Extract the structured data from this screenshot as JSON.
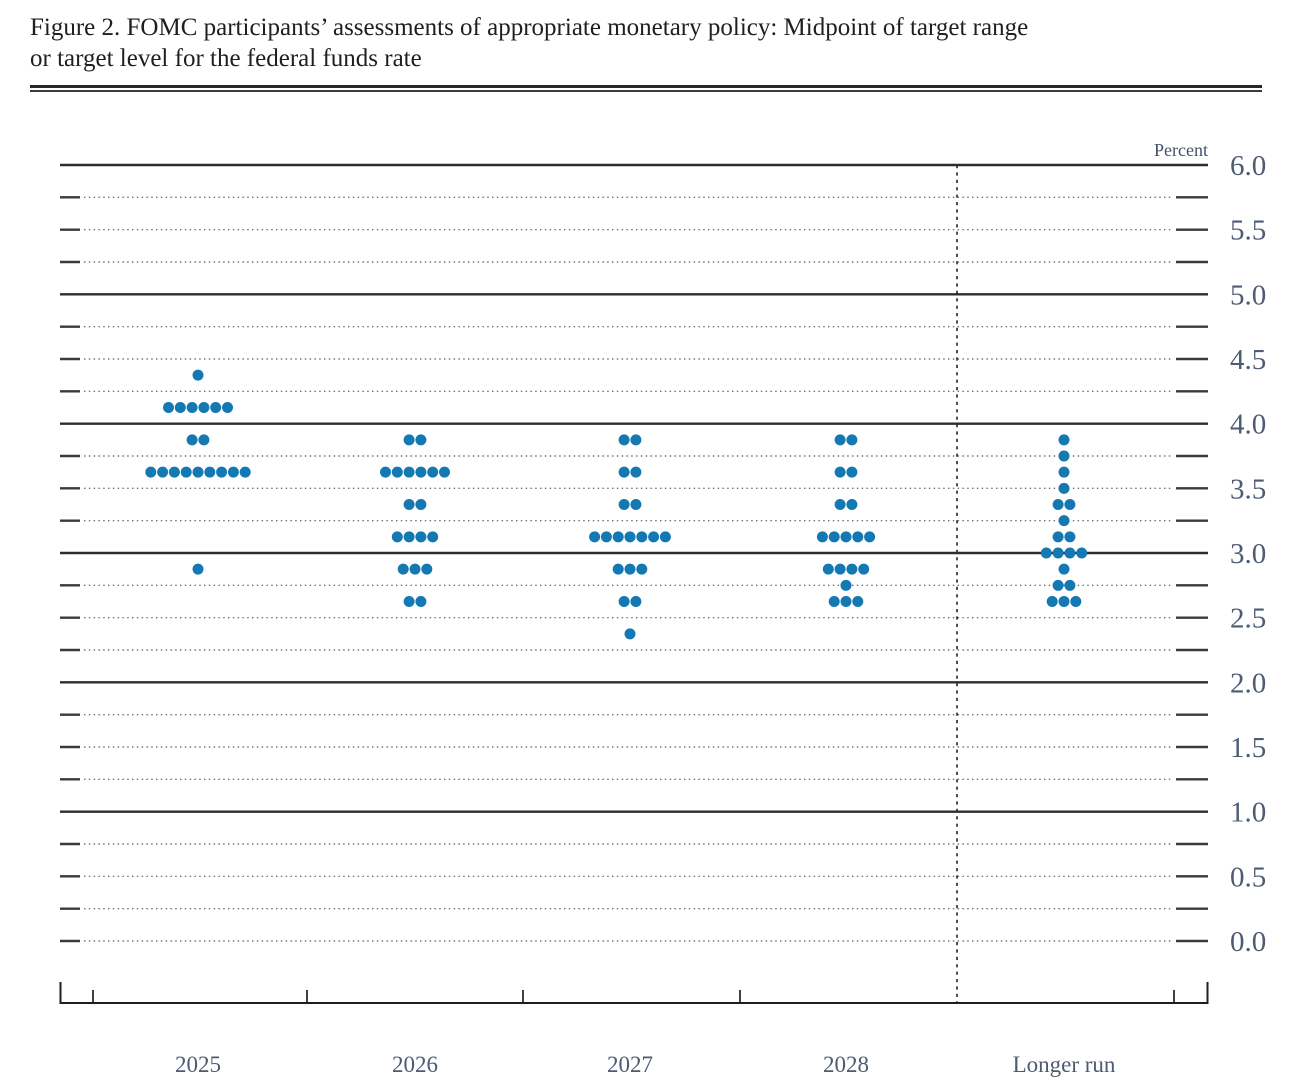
{
  "figure": {
    "title_line1": "Figure 2. FOMC participants’ assessments of appropriate monetary policy: Midpoint of target range",
    "title_line2": "or target level for the federal funds rate"
  },
  "chart_data": {
    "type": "scatter",
    "subtype": "fomc-dot-plot",
    "title": "Figure 2. FOMC participants' assessments of appropriate monetary policy: Midpoint of target range or target level for the federal funds rate",
    "unit_label": "Percent",
    "categories": [
      "2025",
      "2026",
      "2027",
      "2028",
      "Longer run"
    ],
    "ylim": [
      0.0,
      6.0
    ],
    "y_tick_labels": [
      "6.0",
      "5.5",
      "5.0",
      "4.5",
      "4.0",
      "3.5",
      "3.0",
      "2.5",
      "2.0",
      "1.5",
      "1.0",
      "0.5",
      "0.0"
    ],
    "gridline_step": 0.25,
    "solid_gridlines": [
      6.0,
      5.0,
      4.0,
      3.0,
      2.0,
      1.0
    ],
    "separator_after_category": "2028",
    "legend_position": "none",
    "grid": true,
    "dot_color": "#1478b2",
    "dots_per_column": 19,
    "series": [
      {
        "name": "2025",
        "dots": [
          {
            "rate": 4.375,
            "count": 1
          },
          {
            "rate": 4.125,
            "count": 6
          },
          {
            "rate": 3.875,
            "count": 2
          },
          {
            "rate": 3.625,
            "count": 9
          },
          {
            "rate": 2.875,
            "count": 1
          }
        ]
      },
      {
        "name": "2026",
        "dots": [
          {
            "rate": 3.875,
            "count": 2
          },
          {
            "rate": 3.625,
            "count": 6
          },
          {
            "rate": 3.375,
            "count": 2
          },
          {
            "rate": 3.125,
            "count": 4
          },
          {
            "rate": 2.875,
            "count": 3
          },
          {
            "rate": 2.625,
            "count": 2
          }
        ]
      },
      {
        "name": "2027",
        "dots": [
          {
            "rate": 3.875,
            "count": 2
          },
          {
            "rate": 3.625,
            "count": 2
          },
          {
            "rate": 3.375,
            "count": 2
          },
          {
            "rate": 3.125,
            "count": 7
          },
          {
            "rate": 2.875,
            "count": 3
          },
          {
            "rate": 2.625,
            "count": 2
          },
          {
            "rate": 2.375,
            "count": 1
          }
        ]
      },
      {
        "name": "2028",
        "dots": [
          {
            "rate": 3.875,
            "count": 2
          },
          {
            "rate": 3.625,
            "count": 2
          },
          {
            "rate": 3.375,
            "count": 2
          },
          {
            "rate": 3.125,
            "count": 5
          },
          {
            "rate": 2.875,
            "count": 4
          },
          {
            "rate": 2.75,
            "count": 1
          },
          {
            "rate": 2.625,
            "count": 3
          }
        ]
      },
      {
        "name": "Longer run",
        "dots": [
          {
            "rate": 3.875,
            "count": 1
          },
          {
            "rate": 3.75,
            "count": 1
          },
          {
            "rate": 3.625,
            "count": 1
          },
          {
            "rate": 3.5,
            "count": 1
          },
          {
            "rate": 3.375,
            "count": 2
          },
          {
            "rate": 3.25,
            "count": 1
          },
          {
            "rate": 3.125,
            "count": 2
          },
          {
            "rate": 3.0,
            "count": 4
          },
          {
            "rate": 2.875,
            "count": 1
          },
          {
            "rate": 2.75,
            "count": 2
          },
          {
            "rate": 2.625,
            "count": 3
          }
        ]
      }
    ]
  }
}
